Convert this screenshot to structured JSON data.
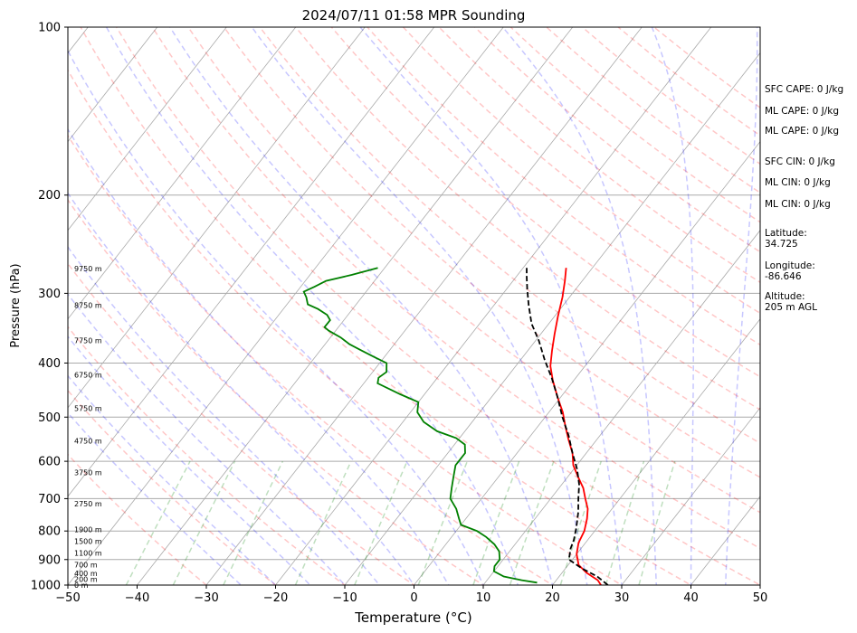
{
  "chart_data": {
    "type": "line",
    "title": "2024/07/11 01:58 MPR Sounding",
    "xlabel": "Temperature (°C)",
    "ylabel": "Pressure (hPa)",
    "xlim": [
      -50,
      50
    ],
    "ylim_hPa": [
      1000,
      100
    ],
    "y_scale": "log",
    "x_ticks": [
      -50,
      -40,
      -30,
      -20,
      -10,
      0,
      10,
      20,
      30,
      40,
      50
    ],
    "y_ticks": [
      1000,
      900,
      800,
      700,
      600,
      500,
      400,
      300,
      200,
      100
    ],
    "grid": true,
    "skew_t": true,
    "series": [
      {
        "color": "#ff0000",
        "style": "solid",
        "points": [
          [
            27.0,
            1000
          ],
          [
            26.0,
            980
          ],
          [
            23.5,
            950
          ],
          [
            21.5,
            920
          ],
          [
            20.0,
            880
          ],
          [
            19.0,
            840
          ],
          [
            18.5,
            800
          ],
          [
            17.5,
            760
          ],
          [
            16.5,
            730
          ],
          [
            15.0,
            700
          ],
          [
            13.5,
            670
          ],
          [
            11.5,
            640
          ],
          [
            9.5,
            610
          ],
          [
            8.0,
            580
          ],
          [
            6.0,
            550
          ],
          [
            4.0,
            520
          ],
          [
            2.0,
            490
          ],
          [
            -0.5,
            460
          ],
          [
            -3.0,
            430
          ],
          [
            -5.0,
            405
          ],
          [
            -6.5,
            380
          ],
          [
            -8.0,
            355
          ],
          [
            -9.5,
            330
          ],
          [
            -11.0,
            305
          ],
          [
            -12.5,
            285
          ],
          [
            -13.8,
            270
          ]
        ]
      },
      {
        "color": "#008000",
        "style": "solid",
        "points": [
          [
            17.5,
            990
          ],
          [
            15.0,
            980
          ],
          [
            12.0,
            965
          ],
          [
            10.0,
            945
          ],
          [
            9.5,
            925
          ],
          [
            9.5,
            900
          ],
          [
            8.5,
            870
          ],
          [
            7.0,
            845
          ],
          [
            5.0,
            820
          ],
          [
            3.0,
            800
          ],
          [
            0.0,
            780
          ],
          [
            -1.0,
            760
          ],
          [
            -2.5,
            730
          ],
          [
            -4.5,
            700
          ],
          [
            -5.5,
            670
          ],
          [
            -6.5,
            640
          ],
          [
            -7.5,
            610
          ],
          [
            -7.5,
            580
          ],
          [
            -8.5,
            560
          ],
          [
            -10.5,
            545
          ],
          [
            -14.0,
            530
          ],
          [
            -17.0,
            510
          ],
          [
            -19.0,
            490
          ],
          [
            -20.0,
            470
          ],
          [
            -23.5,
            455
          ],
          [
            -28.0,
            435
          ],
          [
            -28.5,
            425
          ],
          [
            -28.0,
            415
          ],
          [
            -29.0,
            400
          ],
          [
            -31.5,
            390
          ],
          [
            -34.0,
            380
          ],
          [
            -36.5,
            370
          ],
          [
            -38.5,
            360
          ],
          [
            -41.0,
            350
          ],
          [
            -42.0,
            345
          ],
          [
            -42.0,
            335
          ],
          [
            -43.0,
            328
          ],
          [
            -45.0,
            320
          ],
          [
            -47.0,
            314
          ],
          [
            -48.0,
            305
          ],
          [
            -49.0,
            298
          ],
          [
            -48.0,
            292
          ],
          [
            -47.0,
            285
          ],
          [
            -44.0,
            278
          ],
          [
            -41.0,
            270
          ]
        ]
      },
      {
        "color": "#000000",
        "style": "dashed",
        "points": [
          [
            28.0,
            1000
          ],
          [
            25.5,
            965
          ],
          [
            22.5,
            935
          ],
          [
            19.5,
            900
          ],
          [
            18.5,
            860
          ],
          [
            18.0,
            830
          ],
          [
            17.0,
            790
          ],
          [
            15.5,
            740
          ],
          [
            14.0,
            700
          ],
          [
            12.5,
            660
          ],
          [
            10.5,
            620
          ],
          [
            8.0,
            580
          ],
          [
            5.5,
            540
          ],
          [
            2.5,
            500
          ],
          [
            -0.5,
            460
          ],
          [
            -3.5,
            425
          ],
          [
            -6.5,
            395
          ],
          [
            -9.5,
            365
          ],
          [
            -12.5,
            340
          ],
          [
            -15.0,
            315
          ],
          [
            -17.0,
            295
          ],
          [
            -18.5,
            280
          ],
          [
            -19.5,
            270
          ]
        ]
      }
    ],
    "height_labels": [
      "0 m",
      "200 m",
      "400 m",
      "700 m",
      "1100 m",
      "1500 m",
      "1900 m",
      "2750 m",
      "3750 m",
      "4750 m",
      "5750 m",
      "6750 m",
      "7750 m",
      "8750 m",
      "9750 m"
    ],
    "annotations": {
      "sfc_cape": "SFC CAPE: 0 J/kg",
      "ml_cape": "ML CAPE: 0 J/kg",
      "ml_cape_2": "ML CAPE: 0 J/kg",
      "sfc_cin": "SFC CIN: 0 J/kg",
      "ml_cin": "ML CIN: 0 J/kg",
      "ml_cin_2": "ML CIN: 0 J/kg",
      "latitude_label": "Latitude:",
      "latitude_value": "34.725",
      "longitude_label": "Longitude:",
      "longitude_value": "-86.646",
      "altitude_label": "Altitude:",
      "altitude_value": "205 m AGL"
    }
  }
}
